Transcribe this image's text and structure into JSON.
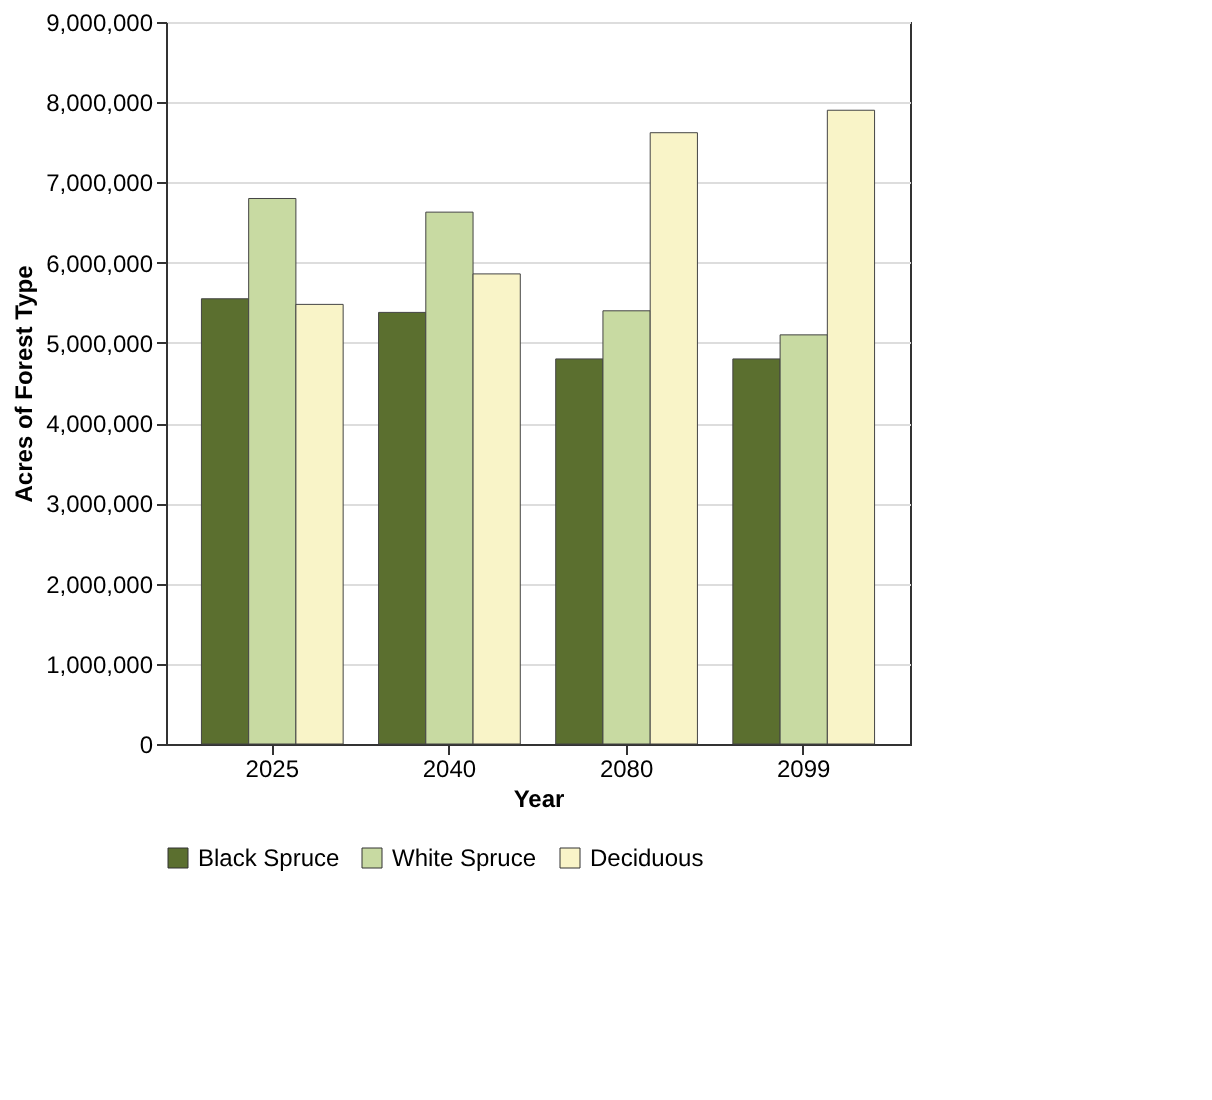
{
  "chart_data": {
    "type": "bar",
    "xlabel": "Year",
    "ylabel": "Acres of Forest Type",
    "categories": [
      "2025",
      "2040",
      "2080",
      "2099"
    ],
    "series": [
      {
        "name": "Black Spruce",
        "color": "#5b6f2f",
        "values": [
          5550000,
          5380000,
          4800000,
          4800000
        ]
      },
      {
        "name": "White Spruce",
        "color": "#c8daa2",
        "values": [
          6800000,
          6630000,
          5400000,
          5100000
        ]
      },
      {
        "name": "Deciduous",
        "color": "#f9f4c8",
        "values": [
          5480000,
          5860000,
          7620000,
          7900000
        ]
      }
    ],
    "ylim": [
      0,
      9000000
    ],
    "yticks": [
      0,
      {
        "value": 1000000,
        "label": "1,000,000"
      },
      {
        "value": 2000000,
        "label": "2,000,000"
      },
      {
        "value": 3000000,
        "label": "3,000,000"
      },
      {
        "value": 4000000,
        "label": "4,000,000"
      },
      {
        "value": 5000000,
        "label": "5,000,000"
      },
      {
        "value": 6000000,
        "label": "6,000,000"
      },
      {
        "value": 7000000,
        "label": "7,000,000"
      },
      {
        "value": 8000000,
        "label": "8,000,000"
      },
      {
        "value": 9000000,
        "label": "9,000,000"
      }
    ],
    "grid": "y",
    "legend": "bottom"
  }
}
